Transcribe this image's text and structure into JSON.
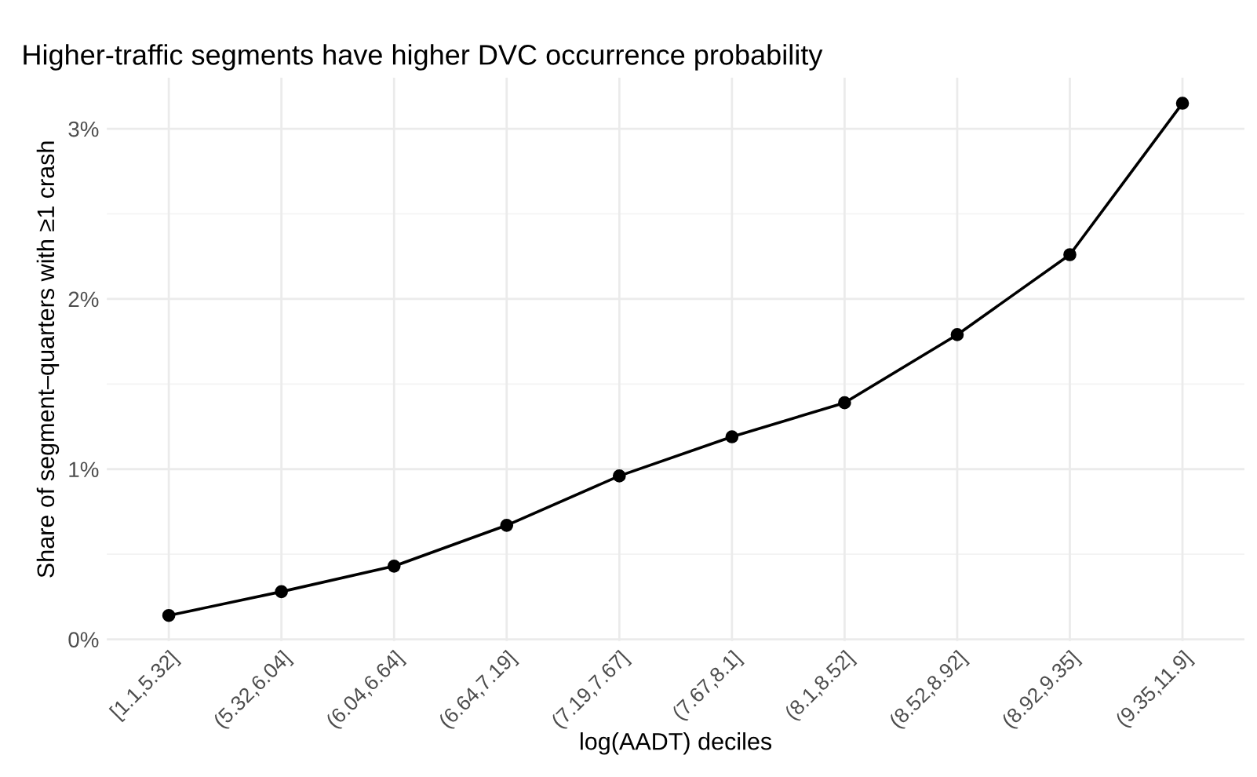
{
  "chart_data": {
    "type": "line",
    "title": "Higher-traffic segments have higher DVC occurrence probability",
    "xlabel": "log(AADT) deciles",
    "ylabel": "Share of segment–quarters with ≥1 crash",
    "categories": [
      "[1.1,5.32]",
      "(5.32,6.04]",
      "(6.04,6.64]",
      "(6.64,7.19]",
      "(7.19,7.67]",
      "(7.67,8.1]",
      "(8.1,8.52]",
      "(8.52,8.92]",
      "(8.92,9.35]",
      "(9.35,11.9]"
    ],
    "series": [
      {
        "color": "#000000",
        "values": [
          0.14,
          0.28,
          0.43,
          0.67,
          0.96,
          1.19,
          1.39,
          1.79,
          2.26,
          3.15
        ]
      }
    ],
    "ylim": [
      -0.01,
      3.3
    ],
    "yticks": [
      {
        "value": 0,
        "label": "0%"
      },
      {
        "value": 0.5,
        "label": null
      },
      {
        "value": 1,
        "label": "1%"
      },
      {
        "value": 1.5,
        "label": null
      },
      {
        "value": 2,
        "label": "2%"
      },
      {
        "value": 2.5,
        "label": null
      },
      {
        "value": 3,
        "label": "3%"
      }
    ],
    "grid": true,
    "marker": "circle",
    "line_style": "solid",
    "legend": false
  }
}
